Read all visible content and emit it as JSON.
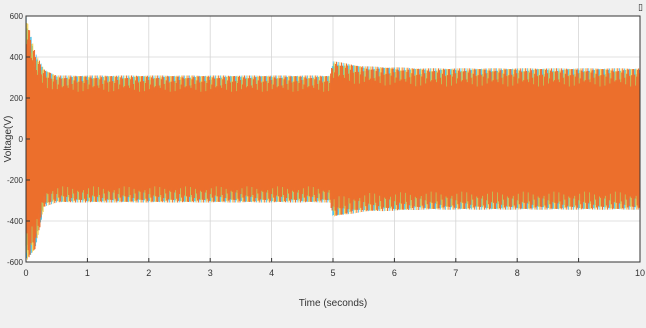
{
  "window": {
    "corner_icon": "dock-icon"
  },
  "chart_data": {
    "type": "line",
    "title": "",
    "xlabel": "Time (seconds)",
    "ylabel": "Voltage(V)",
    "xlim": [
      0,
      10
    ],
    "ylim": [
      -600,
      600
    ],
    "xticks": [
      0,
      1,
      2,
      3,
      4,
      5,
      6,
      7,
      8,
      9,
      10
    ],
    "xtick_labels": [
      "0",
      "1",
      "2",
      "3",
      "4",
      "5",
      "6",
      "7",
      "8",
      "9",
      "10"
    ],
    "yticks": [
      600,
      400,
      200,
      0,
      -200,
      -400,
      -600
    ],
    "ytick_labels": [
      "600",
      "400",
      "200",
      "0",
      "-200",
      "-400",
      "-600"
    ],
    "grid": true,
    "legend": "none",
    "series_colors": [
      "#00aee8",
      "#f2c21a",
      "#ee6a2a"
    ],
    "envelope": {
      "description_points": [
        {
          "t": 0.0,
          "upper": 600,
          "lower": -600
        },
        {
          "t": 0.15,
          "upper": 420,
          "lower": -540
        },
        {
          "t": 0.3,
          "upper": 340,
          "lower": -330
        },
        {
          "t": 0.5,
          "upper": 310,
          "lower": -310
        },
        {
          "t": 4.95,
          "upper": 310,
          "lower": -310
        },
        {
          "t": 5.0,
          "upper": 380,
          "lower": -380
        },
        {
          "t": 5.5,
          "upper": 355,
          "lower": -355
        },
        {
          "t": 6.5,
          "upper": 345,
          "lower": -345
        },
        {
          "t": 10.0,
          "upper": 345,
          "lower": -345
        }
      ]
    }
  }
}
